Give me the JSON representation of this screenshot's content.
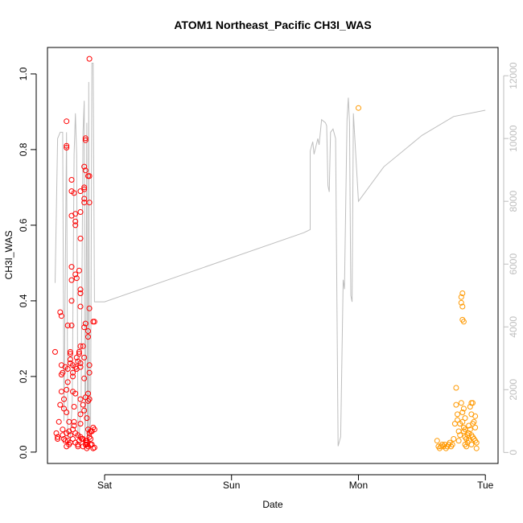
{
  "chart_data": {
    "type": "scatter",
    "title": "ATOM1 Northeast_Pacific CH3I_WAS",
    "xlabel": "Date",
    "ylabel": "CH3I_WAS",
    "x_ticks": [
      {
        "label": "Sat",
        "value": 1.0
      },
      {
        "label": "Sun",
        "value": 2.0
      },
      {
        "label": "Mon",
        "value": 3.0
      },
      {
        "label": "Tue",
        "value": 4.0
      }
    ],
    "xlim": [
      0.55,
      4.1
    ],
    "ylim": [
      -0.03,
      1.07
    ],
    "y_ticks": [
      {
        "label": "0.0",
        "value": 0.0
      },
      {
        "label": "0.2",
        "value": 0.2
      },
      {
        "label": "0.4",
        "value": 0.4
      },
      {
        "label": "0.6",
        "value": 0.6
      },
      {
        "label": "0.8",
        "value": 0.8
      },
      {
        "label": "1.0",
        "value": 1.0
      }
    ],
    "y2lim": [
      -350,
      12900
    ],
    "y2_ticks": [
      {
        "label": "0",
        "value": 0
      },
      {
        "label": "2000",
        "value": 2000
      },
      {
        "label": "4000",
        "value": 4000
      },
      {
        "label": "6000",
        "value": 6000
      },
      {
        "label": "8000",
        "value": 8000
      },
      {
        "label": "10000",
        "value": 10000
      },
      {
        "label": "12000",
        "value": 12000
      }
    ],
    "colors": {
      "red_series": "#ff0000",
      "orange_series": "#ff9900",
      "altitude_line": "#bebebe"
    },
    "series": [
      {
        "color": "#ff0000",
        "points": [
          [
            0.61,
            0.265
          ],
          [
            0.62,
            0.05
          ],
          [
            0.63,
            0.035
          ],
          [
            0.63,
            0.04
          ],
          [
            0.64,
            0.08
          ],
          [
            0.65,
            0.125
          ],
          [
            0.65,
            0.37
          ],
          [
            0.66,
            0.36
          ],
          [
            0.66,
            0.23
          ],
          [
            0.66,
            0.205
          ],
          [
            0.66,
            0.16
          ],
          [
            0.67,
            0.21
          ],
          [
            0.67,
            0.06
          ],
          [
            0.67,
            0.045
          ],
          [
            0.68,
            0.035
          ],
          [
            0.68,
            0.14
          ],
          [
            0.68,
            0.115
          ],
          [
            0.69,
            0.225
          ],
          [
            0.69,
            0.03
          ],
          [
            0.7,
            0.875
          ],
          [
            0.7,
            0.81
          ],
          [
            0.7,
            0.805
          ],
          [
            0.7,
            0.165
          ],
          [
            0.7,
            0.105
          ],
          [
            0.7,
            0.05
          ],
          [
            0.7,
            0.015
          ],
          [
            0.71,
            0.335
          ],
          [
            0.71,
            0.22
          ],
          [
            0.71,
            0.185
          ],
          [
            0.71,
            0.03
          ],
          [
            0.72,
            0.08
          ],
          [
            0.72,
            0.055
          ],
          [
            0.72,
            0.02
          ],
          [
            0.73,
            0.265
          ],
          [
            0.73,
            0.26
          ],
          [
            0.73,
            0.245
          ],
          [
            0.73,
            0.235
          ],
          [
            0.73,
            0.045
          ],
          [
            0.73,
            0.025
          ],
          [
            0.74,
            0.72
          ],
          [
            0.74,
            0.69
          ],
          [
            0.74,
            0.625
          ],
          [
            0.74,
            0.455
          ],
          [
            0.74,
            0.49
          ],
          [
            0.74,
            0.4
          ],
          [
            0.74,
            0.335
          ],
          [
            0.75,
            0.23
          ],
          [
            0.75,
            0.21
          ],
          [
            0.75,
            0.2
          ],
          [
            0.75,
            0.16
          ],
          [
            0.75,
            0.06
          ],
          [
            0.75,
            0.035
          ],
          [
            0.76,
            0.685
          ],
          [
            0.76,
            0.12
          ],
          [
            0.76,
            0.08
          ],
          [
            0.76,
            0.07
          ],
          [
            0.77,
            0.6
          ],
          [
            0.77,
            0.61
          ],
          [
            0.77,
            0.63
          ],
          [
            0.77,
            0.47
          ],
          [
            0.77,
            0.225
          ],
          [
            0.77,
            0.155
          ],
          [
            0.77,
            0.05
          ],
          [
            0.77,
            0.025
          ],
          [
            0.78,
            0.46
          ],
          [
            0.78,
            0.25
          ],
          [
            0.78,
            0.22
          ],
          [
            0.79,
            0.24
          ],
          [
            0.79,
            0.045
          ],
          [
            0.79,
            0.02
          ],
          [
            0.79,
            0.015
          ],
          [
            0.8,
            0.48
          ],
          [
            0.8,
            0.265
          ],
          [
            0.8,
            0.26
          ],
          [
            0.8,
            0.03
          ],
          [
            0.81,
            0.69
          ],
          [
            0.81,
            0.635
          ],
          [
            0.81,
            0.565
          ],
          [
            0.81,
            0.43
          ],
          [
            0.81,
            0.42
          ],
          [
            0.81,
            0.385
          ],
          [
            0.81,
            0.28
          ],
          [
            0.81,
            0.235
          ],
          [
            0.81,
            0.225
          ],
          [
            0.81,
            0.14
          ],
          [
            0.81,
            0.1
          ],
          [
            0.81,
            0.075
          ],
          [
            0.81,
            0.04
          ],
          [
            0.82,
            0.035
          ],
          [
            0.83,
            0.28
          ],
          [
            0.83,
            0.125
          ],
          [
            0.83,
            0.035
          ],
          [
            0.83,
            0.015
          ],
          [
            0.84,
            0.755
          ],
          [
            0.84,
            0.7
          ],
          [
            0.84,
            0.695
          ],
          [
            0.84,
            0.66
          ],
          [
            0.84,
            0.67
          ],
          [
            0.84,
            0.33
          ],
          [
            0.84,
            0.25
          ],
          [
            0.84,
            0.195
          ],
          [
            0.84,
            0.11
          ],
          [
            0.85,
            0.83
          ],
          [
            0.85,
            0.825
          ],
          [
            0.85,
            0.745
          ],
          [
            0.85,
            0.34
          ],
          [
            0.85,
            0.145
          ],
          [
            0.85,
            0.03
          ],
          [
            0.85,
            0.02
          ],
          [
            0.86,
            0.09
          ],
          [
            0.86,
            0.03
          ],
          [
            0.86,
            0.025
          ],
          [
            0.86,
            0.02
          ],
          [
            0.86,
            0.01
          ],
          [
            0.87,
            0.73
          ],
          [
            0.87,
            0.32
          ],
          [
            0.87,
            0.305
          ],
          [
            0.87,
            0.155
          ],
          [
            0.87,
            0.135
          ],
          [
            0.87,
            0.06
          ],
          [
            0.87,
            0.015
          ],
          [
            0.88,
            1.04
          ],
          [
            0.88,
            0.73
          ],
          [
            0.88,
            0.66
          ],
          [
            0.88,
            0.38
          ],
          [
            0.88,
            0.23
          ],
          [
            0.88,
            0.21
          ],
          [
            0.88,
            0.14
          ],
          [
            0.88,
            0.05
          ],
          [
            0.88,
            0.04
          ],
          [
            0.89,
            0.055
          ],
          [
            0.89,
            0.035
          ],
          [
            0.89,
            0.02
          ],
          [
            0.9,
            0.055
          ],
          [
            0.9,
            0.02
          ],
          [
            0.91,
            0.345
          ],
          [
            0.91,
            0.065
          ],
          [
            0.91,
            0.01
          ],
          [
            0.92,
            0.345
          ],
          [
            0.92,
            0.06
          ],
          [
            0.92,
            0.012
          ]
        ]
      },
      {
        "color": "#ff9900",
        "points": [
          [
            3.0,
            0.91
          ],
          [
            3.62,
            0.03
          ],
          [
            3.63,
            0.015
          ],
          [
            3.64,
            0.01
          ],
          [
            3.65,
            0.015
          ],
          [
            3.66,
            0.02
          ],
          [
            3.67,
            0.015
          ],
          [
            3.68,
            0.02
          ],
          [
            3.69,
            0.01
          ],
          [
            3.7,
            0.015
          ],
          [
            3.71,
            0.02
          ],
          [
            3.72,
            0.025
          ],
          [
            3.73,
            0.015
          ],
          [
            3.74,
            0.02
          ],
          [
            3.75,
            0.035
          ],
          [
            3.76,
            0.075
          ],
          [
            3.77,
            0.17
          ],
          [
            3.77,
            0.125
          ],
          [
            3.78,
            0.1
          ],
          [
            3.78,
            0.085
          ],
          [
            3.79,
            0.055
          ],
          [
            3.79,
            0.03
          ],
          [
            3.8,
            0.075
          ],
          [
            3.8,
            0.045
          ],
          [
            3.81,
            0.41
          ],
          [
            3.81,
            0.395
          ],
          [
            3.81,
            0.13
          ],
          [
            3.82,
            0.42
          ],
          [
            3.82,
            0.385
          ],
          [
            3.82,
            0.35
          ],
          [
            3.82,
            0.105
          ],
          [
            3.82,
            0.08
          ],
          [
            3.83,
            0.345
          ],
          [
            3.83,
            0.115
          ],
          [
            3.83,
            0.065
          ],
          [
            3.83,
            0.055
          ],
          [
            3.84,
            0.09
          ],
          [
            3.84,
            0.06
          ],
          [
            3.84,
            0.04
          ],
          [
            3.84,
            0.02
          ],
          [
            3.85,
            0.035
          ],
          [
            3.85,
            0.015
          ],
          [
            3.86,
            0.045
          ],
          [
            3.86,
            0.025
          ],
          [
            3.87,
            0.07
          ],
          [
            3.87,
            0.05
          ],
          [
            3.87,
            0.03
          ],
          [
            3.88,
            0.12
          ],
          [
            3.88,
            0.06
          ],
          [
            3.89,
            0.13
          ],
          [
            3.89,
            0.1
          ],
          [
            3.89,
            0.045
          ],
          [
            3.89,
            0.02
          ],
          [
            3.9,
            0.13
          ],
          [
            3.9,
            0.075
          ],
          [
            3.9,
            0.04
          ],
          [
            3.91,
            0.08
          ],
          [
            3.91,
            0.035
          ],
          [
            3.92,
            0.095
          ],
          [
            3.92,
            0.065
          ],
          [
            3.92,
            0.03
          ],
          [
            3.93,
            0.025
          ],
          [
            3.93,
            0.01
          ]
        ]
      }
    ],
    "altitude_line": [
      [
        0.61,
        5400
      ],
      [
        0.63,
        10000
      ],
      [
        0.65,
        10200
      ],
      [
        0.67,
        10200
      ],
      [
        0.68,
        1000
      ],
      [
        0.7,
        10200
      ],
      [
        0.71,
        500
      ],
      [
        0.73,
        500
      ],
      [
        0.745,
        1600
      ],
      [
        0.76,
        9500
      ],
      [
        0.77,
        10800
      ],
      [
        0.78,
        9500
      ],
      [
        0.79,
        500
      ],
      [
        0.8,
        500
      ],
      [
        0.815,
        1700
      ],
      [
        0.83,
        10200
      ],
      [
        0.84,
        11200
      ],
      [
        0.845,
        500
      ],
      [
        0.85,
        1000
      ],
      [
        0.86,
        10500
      ],
      [
        0.865,
        200
      ],
      [
        0.87,
        500
      ],
      [
        0.875,
        11800
      ],
      [
        0.88,
        600
      ],
      [
        0.89,
        1000
      ],
      [
        0.9,
        12400
      ],
      [
        0.91,
        12400
      ],
      [
        0.92,
        4800
      ],
      [
        1.0,
        4800
      ],
      [
        2.57,
        7000
      ],
      [
        2.62,
        7100
      ],
      [
        2.62,
        9600
      ],
      [
        2.64,
        9900
      ],
      [
        2.65,
        9500
      ],
      [
        2.68,
        10000
      ],
      [
        2.69,
        9800
      ],
      [
        2.71,
        10600
      ],
      [
        2.74,
        10500
      ],
      [
        2.75,
        10400
      ],
      [
        2.76,
        8500
      ],
      [
        2.77,
        8300
      ],
      [
        2.78,
        10200
      ],
      [
        2.8,
        10300
      ],
      [
        2.82,
        10000
      ],
      [
        2.84,
        200
      ],
      [
        2.86,
        500
      ],
      [
        2.88,
        5500
      ],
      [
        2.89,
        5200
      ],
      [
        2.91,
        10600
      ],
      [
        2.92,
        11300
      ],
      [
        2.93,
        10500
      ],
      [
        2.94,
        5000
      ],
      [
        2.95,
        4800
      ],
      [
        2.96,
        10800
      ],
      [
        3.0,
        8000
      ],
      [
        3.2,
        9100
      ],
      [
        3.5,
        10100
      ],
      [
        3.75,
        10700
      ],
      [
        4.0,
        10900
      ]
    ]
  }
}
